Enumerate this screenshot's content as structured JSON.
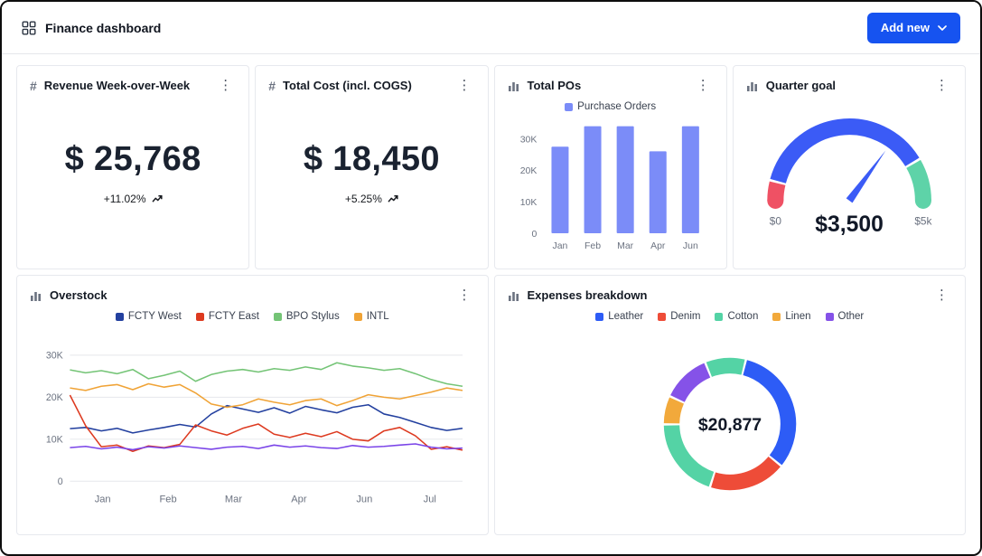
{
  "header": {
    "title": "Finance dashboard",
    "add_new_label": "Add new"
  },
  "icons": {
    "kebab": "⋮",
    "hash": "#"
  },
  "colors": {
    "accent": "#1653f0",
    "grid": "#e5e7eb",
    "muted_text": "#6b7280"
  },
  "cards": {
    "revenue": {
      "title": "Revenue Week-over-Week",
      "value": "$ 25,768",
      "delta": "+11.02%"
    },
    "total_cost": {
      "title": "Total Cost (incl. COGS)",
      "value": "$ 18,450",
      "delta": "+5.25%"
    },
    "total_pos": {
      "title": "Total POs"
    },
    "quarter_goal": {
      "title": "Quarter goal"
    },
    "overstock": {
      "title": "Overstock"
    },
    "expenses": {
      "title": "Expenses breakdown"
    }
  },
  "chart_data": [
    {
      "type": "bar",
      "title": "Total POs",
      "legend": [
        {
          "label": "Purchase Orders",
          "color": "#7b8cf8"
        }
      ],
      "categories": [
        "Jan",
        "Feb",
        "Mar",
        "Apr",
        "Jun"
      ],
      "values": [
        27.5,
        34,
        34,
        26,
        34
      ],
      "unit": "thousands",
      "color": "#7b8cf8",
      "ylim": [
        0,
        36
      ],
      "yticks": [
        {
          "label": "30K",
          "value": 30
        },
        {
          "label": "20K",
          "value": 20
        },
        {
          "label": "10K",
          "value": 10
        },
        {
          "label": "0",
          "value": 0
        }
      ]
    },
    {
      "type": "gauge",
      "title": "Quarter goal",
      "min_label": "$0",
      "max_label": "$5k",
      "display": "$3,500",
      "value": 3500,
      "max": 5000,
      "needle_color": "#3b5bf6",
      "segments": [
        {
          "color": "#ef5164",
          "from": 0.0,
          "to": 0.075
        },
        {
          "color": "#3b5bf6",
          "from": 0.085,
          "to": 0.825
        },
        {
          "color": "#5ed3a8",
          "from": 0.835,
          "to": 1.0
        }
      ]
    },
    {
      "type": "line",
      "title": "Overstock",
      "unit": "thousands",
      "ymax": 32,
      "yticks": [
        {
          "label": "30K",
          "value": 30
        },
        {
          "label": "20K",
          "value": 20
        },
        {
          "label": "10K",
          "value": 10
        },
        {
          "label": "0",
          "value": 0
        }
      ],
      "xticks": [
        "Jan",
        "Feb",
        "Mar",
        "Apr",
        "Jun",
        "Jul"
      ],
      "legend": [
        {
          "label": "FCTY West",
          "color": "#23409f"
        },
        {
          "label": "FCTY East",
          "color": "#dd3a20"
        },
        {
          "label": "BPO Stylus",
          "color": "#74c476"
        },
        {
          "label": "INTL",
          "color": "#f0a336"
        }
      ],
      "series": [
        {
          "label": "FCTY West",
          "color": "#23409f",
          "values": [
            12.5,
            12.8,
            12.0,
            12.6,
            11.5,
            12.2,
            12.8,
            13.5,
            12.9,
            16.0,
            18.0,
            17.2,
            16.4,
            17.5,
            16.2,
            17.8,
            17.0,
            16.3,
            17.6,
            18.2,
            16.0,
            15.2,
            14.0,
            12.8,
            12.1,
            12.6
          ]
        },
        {
          "label": "FCTY East",
          "color": "#dd3a20",
          "values": [
            20.5,
            13.2,
            8.2,
            8.6,
            7.1,
            8.4,
            8.0,
            8.8,
            13.4,
            12.0,
            11.0,
            12.6,
            13.6,
            11.2,
            10.4,
            11.4,
            10.6,
            11.8,
            10.0,
            9.6,
            12.0,
            12.8,
            10.8,
            7.6,
            8.2,
            7.4
          ]
        },
        {
          "label": "BPO Stylus",
          "color": "#74c476",
          "values": [
            26.5,
            25.8,
            26.3,
            25.6,
            26.6,
            24.4,
            25.2,
            26.2,
            23.8,
            25.4,
            26.2,
            26.6,
            26.0,
            26.8,
            26.4,
            27.2,
            26.6,
            28.2,
            27.4,
            27.0,
            26.4,
            26.8,
            25.6,
            24.2,
            23.2,
            22.6
          ]
        },
        {
          "label": "INTL",
          "color": "#f0a336",
          "values": [
            22.2,
            21.6,
            22.6,
            23.0,
            21.8,
            23.2,
            22.4,
            23.0,
            21.0,
            18.4,
            17.6,
            18.2,
            19.6,
            18.8,
            18.2,
            19.2,
            19.6,
            18.0,
            19.2,
            20.6,
            20.0,
            19.6,
            20.4,
            21.2,
            22.2,
            21.6
          ]
        },
        {
          "label": "",
          "color": "#7a44e8",
          "values": [
            8.0,
            8.3,
            7.7,
            8.1,
            7.5,
            8.2,
            7.9,
            8.4,
            8.0,
            7.6,
            8.1,
            8.3,
            7.8,
            8.6,
            8.1,
            8.4,
            8.0,
            7.8,
            8.5,
            8.1,
            8.3,
            8.6,
            8.9,
            8.1,
            7.7,
            7.9
          ]
        }
      ]
    },
    {
      "type": "donut",
      "title": "Expenses breakdown",
      "center_label": "$20,877",
      "start_angle": -22,
      "legend": [
        {
          "label": "Leather",
          "color": "#2d5cf6"
        },
        {
          "label": "Denim",
          "color": "#ee4c38"
        },
        {
          "label": "Cotton",
          "color": "#54d3a5"
        },
        {
          "label": "Linen",
          "color": "#f2a93b"
        },
        {
          "label": "Other",
          "color": "#8552e8"
        }
      ],
      "slices": [
        {
          "label": "Cotton",
          "value": 10,
          "color": "#54d3a5"
        },
        {
          "label": "Leather",
          "value": 32,
          "color": "#2d5cf6"
        },
        {
          "label": "Denim",
          "value": 19,
          "color": "#ee4c38"
        },
        {
          "label": "Cotton",
          "value": 20,
          "color": "#54d3a5"
        },
        {
          "label": "Linen",
          "value": 7,
          "color": "#f2a93b"
        },
        {
          "label": "Other",
          "value": 12,
          "color": "#8552e8"
        }
      ]
    }
  ]
}
